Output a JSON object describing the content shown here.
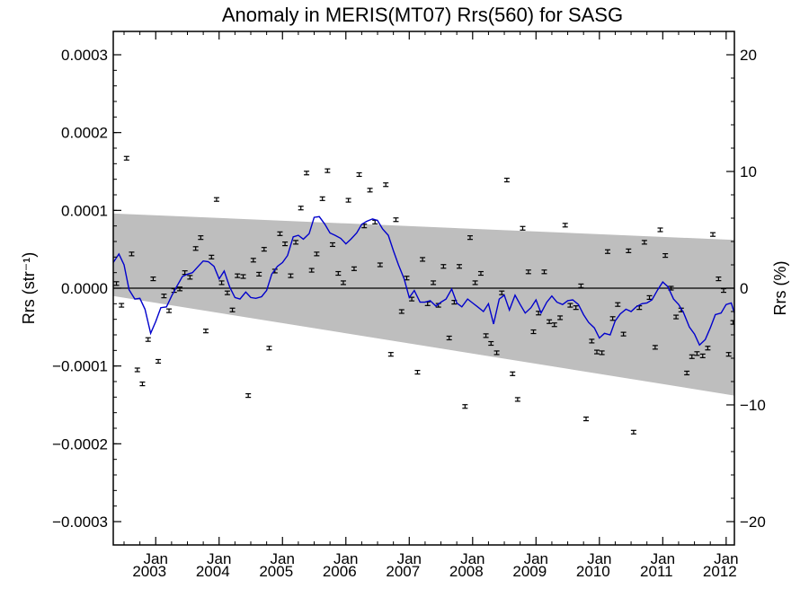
{
  "chart_data": {
    "type": "scatter",
    "title": "Anomaly in MERIS(MT07) Rrs(560) for SASG",
    "ylabel_left": "Rrs (str⁻¹)",
    "ylabel_right": "Rrs (%)",
    "xlim": [
      2002.33,
      2012.13
    ],
    "ylim_left": [
      -0.00033,
      0.00033
    ],
    "ylim_right": [
      -22,
      22
    ],
    "y_ticks_left": [
      {
        "value": 0.0003,
        "label": "0.0003"
      },
      {
        "value": 0.0002,
        "label": "0.0002"
      },
      {
        "value": 0.0001,
        "label": "0.0001"
      },
      {
        "value": 0.0,
        "label": "0.0000"
      },
      {
        "value": -0.0001,
        "label": "−0.0001"
      },
      {
        "value": -0.0002,
        "label": "−0.0002"
      },
      {
        "value": -0.0003,
        "label": "−0.0003"
      }
    ],
    "y_ticks_right": [
      {
        "value": 20,
        "label": "20"
      },
      {
        "value": 10,
        "label": "10"
      },
      {
        "value": 0,
        "label": "0"
      },
      {
        "value": -10,
        "label": "−10"
      },
      {
        "value": -20,
        "label": "−20"
      }
    ],
    "x_ticks": [
      {
        "value": 2003.0,
        "month": "Jan",
        "year": "2003"
      },
      {
        "value": 2004.0,
        "month": "Jan",
        "year": "2004"
      },
      {
        "value": 2005.0,
        "month": "Jan",
        "year": "2005"
      },
      {
        "value": 2006.0,
        "month": "Jan",
        "year": "2006"
      },
      {
        "value": 2007.0,
        "month": "Jan",
        "year": "2007"
      },
      {
        "value": 2008.0,
        "month": "Jan",
        "year": "2008"
      },
      {
        "value": 2009.0,
        "month": "Jan",
        "year": "2009"
      },
      {
        "value": 2010.0,
        "month": "Jan",
        "year": "2010"
      },
      {
        "value": 2011.0,
        "month": "Jan",
        "year": "2011"
      },
      {
        "value": 2012.0,
        "month": "Jan",
        "year": "2012"
      }
    ],
    "uncertainty_band": {
      "x": [
        2002.33,
        2012.13
      ],
      "upper": [
        9.6e-05,
        6.2e-05
      ],
      "lower": [
        -1e-05,
        -0.000138
      ]
    },
    "zero_line": 0.0,
    "points": [
      [
        2002.38,
        6e-06
      ],
      [
        2002.46,
        -2.2e-05
      ],
      [
        2002.54,
        0.000167
      ],
      [
        2002.62,
        4.4e-05
      ],
      [
        2002.71,
        -0.000105
      ],
      [
        2002.79,
        -0.000123
      ],
      [
        2002.88,
        -6.6e-05
      ],
      [
        2002.96,
        1.2e-05
      ],
      [
        2003.04,
        -9.4e-05
      ],
      [
        2003.13,
        -1e-05
      ],
      [
        2003.21,
        -2.9e-05
      ],
      [
        2003.29,
        -3e-06
      ],
      [
        2003.38,
        -1e-06
      ],
      [
        2003.46,
        2e-05
      ],
      [
        2003.54,
        1.4e-05
      ],
      [
        2003.63,
        5.1e-05
      ],
      [
        2003.71,
        6.5e-05
      ],
      [
        2003.79,
        -5.5e-05
      ],
      [
        2003.88,
        4e-05
      ],
      [
        2003.96,
        0.000114
      ],
      [
        2004.04,
        7e-06
      ],
      [
        2004.13,
        -6e-06
      ],
      [
        2004.21,
        -2.8e-05
      ],
      [
        2004.29,
        1.6e-05
      ],
      [
        2004.38,
        1.5e-05
      ],
      [
        2004.46,
        -0.000138
      ],
      [
        2004.54,
        3.6e-05
      ],
      [
        2004.63,
        1.8e-05
      ],
      [
        2004.71,
        5e-05
      ],
      [
        2004.79,
        -7.7e-05
      ],
      [
        2004.88,
        2.2e-05
      ],
      [
        2004.96,
        7e-05
      ],
      [
        2005.04,
        5.7e-05
      ],
      [
        2005.13,
        1.6e-05
      ],
      [
        2005.21,
        5.9e-05
      ],
      [
        2005.29,
        0.000103
      ],
      [
        2005.38,
        0.000148
      ],
      [
        2005.46,
        2.3e-05
      ],
      [
        2005.54,
        4.4e-05
      ],
      [
        2005.63,
        0.000115
      ],
      [
        2005.71,
        0.000151
      ],
      [
        2005.79,
        5.6e-05
      ],
      [
        2005.88,
        1.9e-05
      ],
      [
        2005.96,
        7e-06
      ],
      [
        2006.04,
        0.000113
      ],
      [
        2006.13,
        2.5e-05
      ],
      [
        2006.21,
        0.000146
      ],
      [
        2006.29,
        8e-05
      ],
      [
        2006.38,
        0.000126
      ],
      [
        2006.46,
        8.5e-05
      ],
      [
        2006.54,
        3e-05
      ],
      [
        2006.63,
        0.000133
      ],
      [
        2006.71,
        -8.5e-05
      ],
      [
        2006.79,
        8.8e-05
      ],
      [
        2006.88,
        -3e-05
      ],
      [
        2006.96,
        1.3e-05
      ],
      [
        2007.04,
        -1.4e-05
      ],
      [
        2007.13,
        -0.000108
      ],
      [
        2007.21,
        3.7e-05
      ],
      [
        2007.29,
        -2e-05
      ],
      [
        2007.38,
        7e-06
      ],
      [
        2007.46,
        -2.2e-05
      ],
      [
        2007.54,
        2.8e-05
      ],
      [
        2007.63,
        -6.4e-05
      ],
      [
        2007.71,
        -1.8e-05
      ],
      [
        2007.79,
        2.8e-05
      ],
      [
        2007.88,
        -0.000152
      ],
      [
        2007.96,
        6.5e-05
      ],
      [
        2008.04,
        7e-06
      ],
      [
        2008.13,
        1.9e-05
      ],
      [
        2008.21,
        -6.1e-05
      ],
      [
        2008.29,
        -7.1e-05
      ],
      [
        2008.38,
        -8.3e-05
      ],
      [
        2008.46,
        -6e-06
      ],
      [
        2008.54,
        0.000139
      ],
      [
        2008.63,
        -0.00011
      ],
      [
        2008.71,
        -0.000143
      ],
      [
        2008.79,
        7.7e-05
      ],
      [
        2008.88,
        2.1e-05
      ],
      [
        2008.96,
        -5.6e-05
      ],
      [
        2009.04,
        -3.2e-05
      ],
      [
        2009.13,
        2.1e-05
      ],
      [
        2009.21,
        -4.3e-05
      ],
      [
        2009.29,
        -4.7e-05
      ],
      [
        2009.38,
        -3.8e-05
      ],
      [
        2009.46,
        8.1e-05
      ],
      [
        2009.54,
        -2.2e-05
      ],
      [
        2009.63,
        -2.5e-05
      ],
      [
        2009.71,
        3e-06
      ],
      [
        2009.79,
        -0.000168
      ],
      [
        2009.88,
        -6.8e-05
      ],
      [
        2009.96,
        -8.2e-05
      ],
      [
        2010.04,
        -8.3e-05
      ],
      [
        2010.13,
        4.7e-05
      ],
      [
        2010.21,
        -3.9e-05
      ],
      [
        2010.29,
        -2.1e-05
      ],
      [
        2010.38,
        -5.9e-05
      ],
      [
        2010.46,
        4.8e-05
      ],
      [
        2010.54,
        -0.000185
      ],
      [
        2010.63,
        -2.5e-05
      ],
      [
        2010.71,
        5.9e-05
      ],
      [
        2010.79,
        -1.2e-05
      ],
      [
        2010.88,
        -7.6e-05
      ],
      [
        2010.96,
        7.5e-05
      ],
      [
        2011.04,
        4.2e-05
      ],
      [
        2011.13,
        0.0
      ],
      [
        2011.21,
        -3.7e-05
      ],
      [
        2011.29,
        -2.8e-05
      ],
      [
        2011.38,
        -0.000109
      ],
      [
        2011.46,
        -8.8e-05
      ],
      [
        2011.54,
        -8.4e-05
      ],
      [
        2011.63,
        -8.7e-05
      ],
      [
        2011.71,
        -7.7e-05
      ],
      [
        2011.79,
        6.9e-05
      ],
      [
        2011.88,
        1.2e-05
      ],
      [
        2011.96,
        -3e-06
      ],
      [
        2012.04,
        -8.5e-05
      ],
      [
        2012.11,
        -4.4e-05
      ]
    ],
    "smoothed_series": {
      "color": "#0000cc",
      "points": [
        [
          2002.33,
          3.3e-05
        ],
        [
          2002.42,
          4.4e-05
        ],
        [
          2002.5,
          3e-05
        ],
        [
          2002.58,
          -2e-06
        ],
        [
          2002.67,
          -1.4e-05
        ],
        [
          2002.75,
          -1.3e-05
        ],
        [
          2002.83,
          -2.7e-05
        ],
        [
          2002.92,
          -5.8e-05
        ],
        [
          2003.0,
          -4.3e-05
        ],
        [
          2003.08,
          -2.5e-05
        ],
        [
          2003.17,
          -2.4e-05
        ],
        [
          2003.25,
          -1e-05
        ],
        [
          2003.33,
          2e-06
        ],
        [
          2003.42,
          1.5e-05
        ],
        [
          2003.5,
          1.8e-05
        ],
        [
          2003.58,
          2e-05
        ],
        [
          2003.67,
          2.8e-05
        ],
        [
          2003.75,
          3.5e-05
        ],
        [
          2003.83,
          3.4e-05
        ],
        [
          2003.92,
          2.8e-05
        ],
        [
          2004.0,
          1.2e-05
        ],
        [
          2004.08,
          2.2e-05
        ],
        [
          2004.17,
          1e-06
        ],
        [
          2004.25,
          -1.2e-05
        ],
        [
          2004.33,
          -1.4e-05
        ],
        [
          2004.42,
          -5e-06
        ],
        [
          2004.5,
          -1.2e-05
        ],
        [
          2004.58,
          -1.3e-05
        ],
        [
          2004.67,
          -1.1e-05
        ],
        [
          2004.75,
          -3e-06
        ],
        [
          2004.83,
          1.8e-05
        ],
        [
          2004.92,
          2.8e-05
        ],
        [
          2005.0,
          3.3e-05
        ],
        [
          2005.08,
          4.2e-05
        ],
        [
          2005.17,
          6.6e-05
        ],
        [
          2005.25,
          6.8e-05
        ],
        [
          2005.33,
          6.3e-05
        ],
        [
          2005.42,
          7e-05
        ],
        [
          2005.5,
          9.1e-05
        ],
        [
          2005.58,
          9.2e-05
        ],
        [
          2005.67,
          8.2e-05
        ],
        [
          2005.75,
          7.1e-05
        ],
        [
          2005.83,
          6.8e-05
        ],
        [
          2005.92,
          6.4e-05
        ],
        [
          2006.0,
          5.7e-05
        ],
        [
          2006.08,
          6.3e-05
        ],
        [
          2006.17,
          7.1e-05
        ],
        [
          2006.25,
          8.2e-05
        ],
        [
          2006.33,
          8.6e-05
        ],
        [
          2006.42,
          8.9e-05
        ],
        [
          2006.5,
          8.7e-05
        ],
        [
          2006.58,
          7.6e-05
        ],
        [
          2006.67,
          6.8e-05
        ],
        [
          2006.75,
          4.8e-05
        ],
        [
          2006.83,
          3e-05
        ],
        [
          2006.92,
          1.2e-05
        ],
        [
          2007.0,
          -1.2e-05
        ],
        [
          2007.08,
          -3e-06
        ],
        [
          2007.17,
          -1.8e-05
        ],
        [
          2007.25,
          -1.8e-05
        ],
        [
          2007.33,
          -1.6e-05
        ],
        [
          2007.42,
          -2.3e-05
        ],
        [
          2007.5,
          -1.8e-05
        ],
        [
          2007.58,
          -1.4e-05
        ],
        [
          2007.67,
          -1e-06
        ],
        [
          2007.75,
          -1.9e-05
        ],
        [
          2007.83,
          -2.4e-05
        ],
        [
          2007.92,
          -1.4e-05
        ],
        [
          2008.0,
          -1.9e-05
        ],
        [
          2008.08,
          -2.4e-05
        ],
        [
          2008.17,
          -3e-05
        ],
        [
          2008.25,
          -2e-05
        ],
        [
          2008.33,
          -4.6e-05
        ],
        [
          2008.42,
          -1.4e-05
        ],
        [
          2008.5,
          -9e-06
        ],
        [
          2008.58,
          -2.8e-05
        ],
        [
          2008.67,
          -9e-06
        ],
        [
          2008.75,
          -2.1e-05
        ],
        [
          2008.83,
          -3.2e-05
        ],
        [
          2008.92,
          -2.5e-05
        ],
        [
          2009.0,
          -1.5e-05
        ],
        [
          2009.08,
          -3.2e-05
        ],
        [
          2009.17,
          -1.8e-05
        ],
        [
          2009.25,
          -1e-05
        ],
        [
          2009.33,
          -1.8e-05
        ],
        [
          2009.42,
          -2.1e-05
        ],
        [
          2009.5,
          -1.6e-05
        ],
        [
          2009.58,
          -1.5e-05
        ],
        [
          2009.67,
          -2.1e-05
        ],
        [
          2009.75,
          -3.4e-05
        ],
        [
          2009.83,
          -4.4e-05
        ],
        [
          2009.92,
          -5.1e-05
        ],
        [
          2010.0,
          -6.4e-05
        ],
        [
          2010.08,
          -5.8e-05
        ],
        [
          2010.17,
          -6e-05
        ],
        [
          2010.25,
          -4.2e-05
        ],
        [
          2010.33,
          -3.3e-05
        ],
        [
          2010.42,
          -2.7e-05
        ],
        [
          2010.5,
          -3e-05
        ],
        [
          2010.58,
          -2.4e-05
        ],
        [
          2010.67,
          -2e-05
        ],
        [
          2010.75,
          -1.9e-05
        ],
        [
          2010.83,
          -1.5e-05
        ],
        [
          2010.92,
          -2e-06
        ],
        [
          2011.0,
          8e-06
        ],
        [
          2011.08,
          2e-06
        ],
        [
          2011.17,
          -1.4e-05
        ],
        [
          2011.25,
          -2.1e-05
        ],
        [
          2011.33,
          -3.2e-05
        ],
        [
          2011.42,
          -5e-05
        ],
        [
          2011.5,
          -5.9e-05
        ],
        [
          2011.58,
          -7.3e-05
        ],
        [
          2011.67,
          -6.6e-05
        ],
        [
          2011.75,
          -5.1e-05
        ],
        [
          2011.83,
          -3.4e-05
        ],
        [
          2011.92,
          -3.2e-05
        ],
        [
          2012.0,
          -2.1e-05
        ],
        [
          2012.08,
          -1.9e-05
        ],
        [
          2012.13,
          -3.2e-05
        ]
      ]
    }
  }
}
